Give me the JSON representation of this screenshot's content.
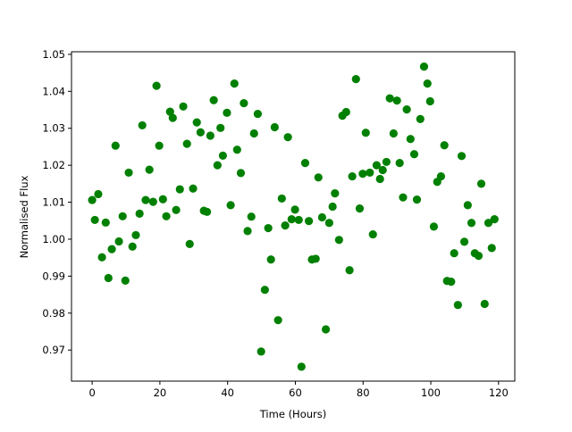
{
  "chart_data": {
    "type": "scatter",
    "title": "",
    "xlabel": "Time (Hours)",
    "ylabel": "Normalised Flux",
    "xlim": [
      -6.1,
      124.8
    ],
    "ylim": [
      0.9616,
      1.0507
    ],
    "xticks": [
      "0",
      "20",
      "40",
      "60",
      "80",
      "100",
      "120"
    ],
    "yticks": [
      "0.97",
      "0.98",
      "0.99",
      "1.00",
      "1.01",
      "1.02",
      "1.03",
      "1.04",
      "1.05"
    ],
    "grid": false,
    "marker_color": "#008000",
    "points": [
      [
        0,
        1.0106
      ],
      [
        0.8,
        1.0052
      ],
      [
        1.8,
        1.0122
      ],
      [
        2.9,
        0.9951
      ],
      [
        4.0,
        1.0045
      ],
      [
        4.8,
        0.9895
      ],
      [
        5.8,
        0.9973
      ],
      [
        6.9,
        1.0253
      ],
      [
        7.9,
        0.9994
      ],
      [
        9.0,
        1.0062
      ],
      [
        9.8,
        0.9888
      ],
      [
        10.8,
        1.018
      ],
      [
        11.9,
        0.998
      ],
      [
        12.9,
        1.0011
      ],
      [
        14.0,
        1.0069
      ],
      [
        14.8,
        1.0308
      ],
      [
        15.8,
        1.0106
      ],
      [
        16.9,
        1.0188
      ],
      [
        18.0,
        1.0101
      ],
      [
        19.0,
        1.0415
      ],
      [
        19.8,
        1.0253
      ],
      [
        20.9,
        1.0108
      ],
      [
        21.9,
        1.0062
      ],
      [
        23.0,
        1.0345
      ],
      [
        23.8,
        1.0328
      ],
      [
        24.8,
        1.0079
      ],
      [
        25.9,
        1.0135
      ],
      [
        26.9,
        1.0359
      ],
      [
        28.0,
        1.0258
      ],
      [
        28.8,
        0.9987
      ],
      [
        29.8,
        1.0137
      ],
      [
        30.9,
        1.0316
      ],
      [
        32.0,
        1.0289
      ],
      [
        33.0,
        1.0077
      ],
      [
        33.9,
        1.0074
      ],
      [
        34.9,
        1.028
      ],
      [
        35.9,
        1.0376
      ],
      [
        37.0,
        1.02
      ],
      [
        37.9,
        1.0301
      ],
      [
        38.6,
        1.0226
      ],
      [
        39.8,
        1.0342
      ],
      [
        40.9,
        1.0092
      ],
      [
        42.0,
        1.0421
      ],
      [
        42.8,
        1.0242
      ],
      [
        43.9,
        1.0179
      ],
      [
        44.8,
        1.0368
      ],
      [
        45.9,
        1.0022
      ],
      [
        47.0,
        1.0061
      ],
      [
        47.8,
        1.0286
      ],
      [
        48.9,
        1.0339
      ],
      [
        49.9,
        0.9696
      ],
      [
        51.0,
        0.9863
      ],
      [
        52.0,
        1.003
      ],
      [
        52.8,
        0.9945
      ],
      [
        53.9,
        1.0303
      ],
      [
        54.9,
        0.9781
      ],
      [
        56.0,
        1.011
      ],
      [
        57.0,
        1.0037
      ],
      [
        57.8,
        1.0276
      ],
      [
        58.9,
        1.0054
      ],
      [
        59.9,
        1.008
      ],
      [
        61.0,
        1.0052
      ],
      [
        61.8,
        0.9655
      ],
      [
        62.9,
        1.0206
      ],
      [
        64.0,
        1.0049
      ],
      [
        64.9,
        0.9945
      ],
      [
        66.0,
        0.9947
      ],
      [
        66.8,
        1.0167
      ],
      [
        67.9,
        1.0059
      ],
      [
        69.0,
        0.9756
      ],
      [
        70.0,
        1.0044
      ],
      [
        71.0,
        1.0088
      ],
      [
        71.7,
        1.0124
      ],
      [
        72.9,
        0.9998
      ],
      [
        73.9,
        1.0334
      ],
      [
        75.0,
        1.0344
      ],
      [
        76.0,
        0.9916
      ],
      [
        76.8,
        1.017
      ],
      [
        77.9,
        1.0433
      ],
      [
        79.0,
        1.0083
      ],
      [
        79.9,
        1.0177
      ],
      [
        80.8,
        1.0288
      ],
      [
        82.0,
        1.018
      ],
      [
        82.9,
        1.0013
      ],
      [
        84.0,
        1.02
      ],
      [
        85.0,
        1.0163
      ],
      [
        85.8,
        1.0187
      ],
      [
        86.9,
        1.0209
      ],
      [
        87.9,
        1.0381
      ],
      [
        89.0,
        1.0286
      ],
      [
        90.0,
        1.0375
      ],
      [
        90.8,
        1.0206
      ],
      [
        91.8,
        1.0113
      ],
      [
        92.9,
        1.0351
      ],
      [
        94.0,
        1.0271
      ],
      [
        95.1,
        1.023
      ],
      [
        95.9,
        1.0107
      ],
      [
        96.9,
        1.0325
      ],
      [
        98.0,
        1.0467
      ],
      [
        99.0,
        1.0421
      ],
      [
        99.8,
        1.0373
      ],
      [
        100.9,
        1.0034
      ],
      [
        101.9,
        1.0155
      ],
      [
        103.0,
        1.017
      ],
      [
        104.0,
        1.0254
      ],
      [
        104.8,
        0.9887
      ],
      [
        106.0,
        0.9885
      ],
      [
        106.9,
        0.9962
      ],
      [
        108.0,
        0.9822
      ],
      [
        109.1,
        1.0225
      ],
      [
        109.9,
        0.9993
      ],
      [
        110.9,
        1.0092
      ],
      [
        112.0,
        1.0044
      ],
      [
        113.0,
        0.9962
      ],
      [
        114.1,
        0.9955
      ],
      [
        114.9,
        1.015
      ],
      [
        115.9,
        0.9825
      ],
      [
        117.0,
        1.0044
      ],
      [
        118.0,
        0.9976
      ],
      [
        118.8,
        1.0054
      ]
    ]
  }
}
